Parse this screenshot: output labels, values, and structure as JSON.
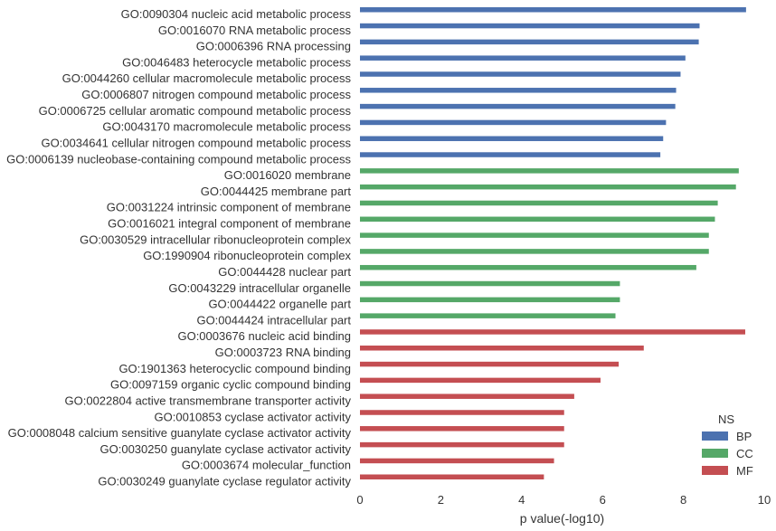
{
  "chart_data": {
    "type": "bar",
    "orientation": "horizontal",
    "xlabel": "p value(-log10)",
    "ylabel": "",
    "title": "",
    "xlim": [
      0,
      10
    ],
    "xticks": [
      0,
      2,
      4,
      6,
      8,
      10
    ],
    "grid": false,
    "legend": {
      "title": "NS",
      "placement": "bottom-right",
      "entries": [
        {
          "name": "BP",
          "color": "#4c72b0"
        },
        {
          "name": "CC",
          "color": "#55a868"
        },
        {
          "name": "MF",
          "color": "#c44e52"
        }
      ]
    },
    "categories": [
      {
        "label": "GO:0090304 nucleic acid metabolic process",
        "ns": "BP",
        "value": 9.55
      },
      {
        "label": "GO:0016070 RNA metabolic process",
        "ns": "BP",
        "value": 8.4
      },
      {
        "label": "GO:0006396 RNA processing",
        "ns": "BP",
        "value": 8.38
      },
      {
        "label": "GO:0046483 heterocycle metabolic process",
        "ns": "BP",
        "value": 8.05
      },
      {
        "label": "GO:0044260 cellular macromolecule metabolic process",
        "ns": "BP",
        "value": 7.93
      },
      {
        "label": "GO:0006807 nitrogen compound metabolic process",
        "ns": "BP",
        "value": 7.82
      },
      {
        "label": "GO:0006725 cellular aromatic compound metabolic process",
        "ns": "BP",
        "value": 7.8
      },
      {
        "label": "GO:0043170 macromolecule metabolic process",
        "ns": "BP",
        "value": 7.57
      },
      {
        "label": "GO:0034641 cellular nitrogen compound metabolic process",
        "ns": "BP",
        "value": 7.5
      },
      {
        "label": "GO:0006139 nucleobase-containing compound metabolic process",
        "ns": "BP",
        "value": 7.43
      },
      {
        "label": "GO:0016020 membrane",
        "ns": "CC",
        "value": 9.37
      },
      {
        "label": "GO:0044425 membrane part",
        "ns": "CC",
        "value": 9.3
      },
      {
        "label": "GO:0031224 intrinsic component of membrane",
        "ns": "CC",
        "value": 8.85
      },
      {
        "label": "GO:0016021 integral component of membrane",
        "ns": "CC",
        "value": 8.78
      },
      {
        "label": "GO:0030529 intracellular ribonucleoprotein complex",
        "ns": "CC",
        "value": 8.63
      },
      {
        "label": "GO:1990904 ribonucleoprotein complex",
        "ns": "CC",
        "value": 8.63
      },
      {
        "label": "GO:0044428 nuclear part",
        "ns": "CC",
        "value": 8.32
      },
      {
        "label": "GO:0043229 intracellular organelle",
        "ns": "CC",
        "value": 6.43
      },
      {
        "label": "GO:0044422 organelle part",
        "ns": "CC",
        "value": 6.43
      },
      {
        "label": "GO:0044424 intracellular part",
        "ns": "CC",
        "value": 6.32
      },
      {
        "label": "GO:0003676 nucleic acid binding",
        "ns": "MF",
        "value": 9.53
      },
      {
        "label": "GO:0003723 RNA binding",
        "ns": "MF",
        "value": 7.02
      },
      {
        "label": "GO:1901363 heterocyclic compound binding",
        "ns": "MF",
        "value": 6.4
      },
      {
        "label": "GO:0097159 organic cyclic compound binding",
        "ns": "MF",
        "value": 5.95
      },
      {
        "label": "GO:0022804 active transmembrane transporter activity",
        "ns": "MF",
        "value": 5.3
      },
      {
        "label": "GO:0010853 cyclase activator activity",
        "ns": "MF",
        "value": 5.05
      },
      {
        "label": "GO:0008048 calcium sensitive guanylate cyclase activator activity",
        "ns": "MF",
        "value": 5.05
      },
      {
        "label": "GO:0030250 guanylate cyclase activator activity",
        "ns": "MF",
        "value": 5.05
      },
      {
        "label": "GO:0003674 molecular_function",
        "ns": "MF",
        "value": 4.8
      },
      {
        "label": "GO:0030249 guanylate cyclase regulator activity",
        "ns": "MF",
        "value": 4.55
      }
    ]
  }
}
